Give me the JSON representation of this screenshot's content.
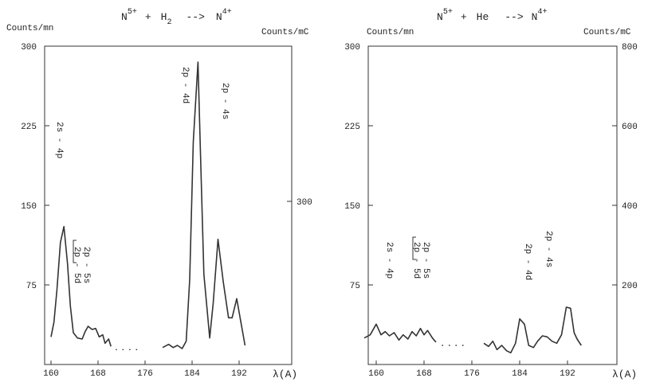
{
  "chart_data": [
    {
      "type": "line",
      "title": {
        "projectile": "N",
        "projectile_charge": "5+",
        "plus": "+",
        "target": "H",
        "target_sub": "2",
        "arrow": "-->",
        "product": "N",
        "product_charge": "4+"
      },
      "ylabel_left": "Counts/mn",
      "ylabel_right": "Counts/mC",
      "xlabel": "λ(A)",
      "xlim": [
        160,
        194
      ],
      "ylim_left": [
        0,
        300
      ],
      "y_ticks_left": [
        75,
        150,
        225,
        300
      ],
      "y_ticks_right": [
        300
      ],
      "x_ticks": [
        160,
        168,
        176,
        184,
        192
      ],
      "series": [
        {
          "x": [
            160,
            160.5,
            161,
            161.6,
            162.2,
            162.8,
            163.3,
            163.8,
            164.5,
            165.3,
            165.8,
            166.3,
            167,
            167.6,
            168.2,
            168.8,
            169.2,
            169.8,
            170.2
          ],
          "y": [
            26,
            40,
            70,
            115,
            130,
            95,
            55,
            30,
            25,
            24,
            31,
            36,
            33,
            34,
            26,
            28,
            20,
            24,
            17
          ]
        },
        {
          "x": [
            171,
            172,
            173,
            174,
            175
          ],
          "y": [
            14,
            14,
            14,
            14,
            14
          ],
          "style": "dotted"
        },
        {
          "x": [
            179,
            180,
            180.8,
            181.5,
            182.3,
            183,
            183.6,
            184.2,
            185,
            185.4,
            186,
            187,
            187.6,
            188.4,
            189.3,
            190.2,
            190.8,
            191.6,
            192.3,
            193
          ],
          "y": [
            16,
            19,
            16,
            18,
            15,
            22,
            80,
            210,
            285,
            205,
            85,
            25,
            58,
            118,
            78,
            44,
            44,
            62,
            40,
            18
          ]
        }
      ],
      "annotations": [
        "2s - 4p",
        "2p - 5s",
        "2p - 5d",
        "2p - 4d",
        "2p - 4s"
      ]
    },
    {
      "type": "line",
      "title": {
        "projectile": "N",
        "projectile_charge": "5+",
        "plus": "+",
        "target": "He",
        "arrow": "-->",
        "product": "N",
        "product_charge": "4+"
      },
      "ylabel_left": "Counts/mn",
      "ylabel_right": "Counts/mC",
      "xlabel": "λ(A)",
      "xlim": [
        158,
        196
      ],
      "ylim_left": [
        0,
        300
      ],
      "ylim_right": [
        0,
        800
      ],
      "y_ticks_left": [
        75,
        150,
        225,
        300
      ],
      "y_ticks_right": [
        200,
        400,
        600,
        800
      ],
      "x_ticks": [
        160,
        168,
        176,
        184,
        192
      ],
      "series": [
        {
          "x": [
            158,
            159,
            160,
            160.8,
            161.5,
            162.2,
            163,
            163.8,
            164.5,
            165.3,
            166,
            166.7,
            167.4,
            168,
            168.6,
            169.4,
            170
          ],
          "y": [
            25,
            28,
            38,
            28,
            31,
            27,
            30,
            23,
            28,
            24,
            31,
            27,
            34,
            28,
            32,
            25,
            21
          ]
        },
        {
          "x": [
            171,
            172,
            173,
            174,
            175
          ],
          "y": [
            18,
            18,
            18,
            18,
            18
          ],
          "style": "dotted"
        },
        {
          "x": [
            178,
            178.8,
            179.5,
            180.2,
            181,
            181.8,
            182.5,
            183.3,
            184,
            184.8,
            185.5,
            186.3,
            187,
            187.8,
            188.6,
            189.4,
            190.2,
            191,
            191.8,
            192.5,
            193.1,
            193.6,
            194.3
          ],
          "y": [
            20,
            17,
            22,
            14,
            18,
            13,
            11,
            20,
            43,
            38,
            18,
            16,
            22,
            27,
            26,
            22,
            20,
            28,
            54,
            53,
            30,
            24,
            18
          ]
        }
      ],
      "annotations": [
        "2s - 4p",
        "2p - 5s",
        "2p - 5d",
        "2p - 4d",
        "2p - 4s"
      ]
    }
  ]
}
